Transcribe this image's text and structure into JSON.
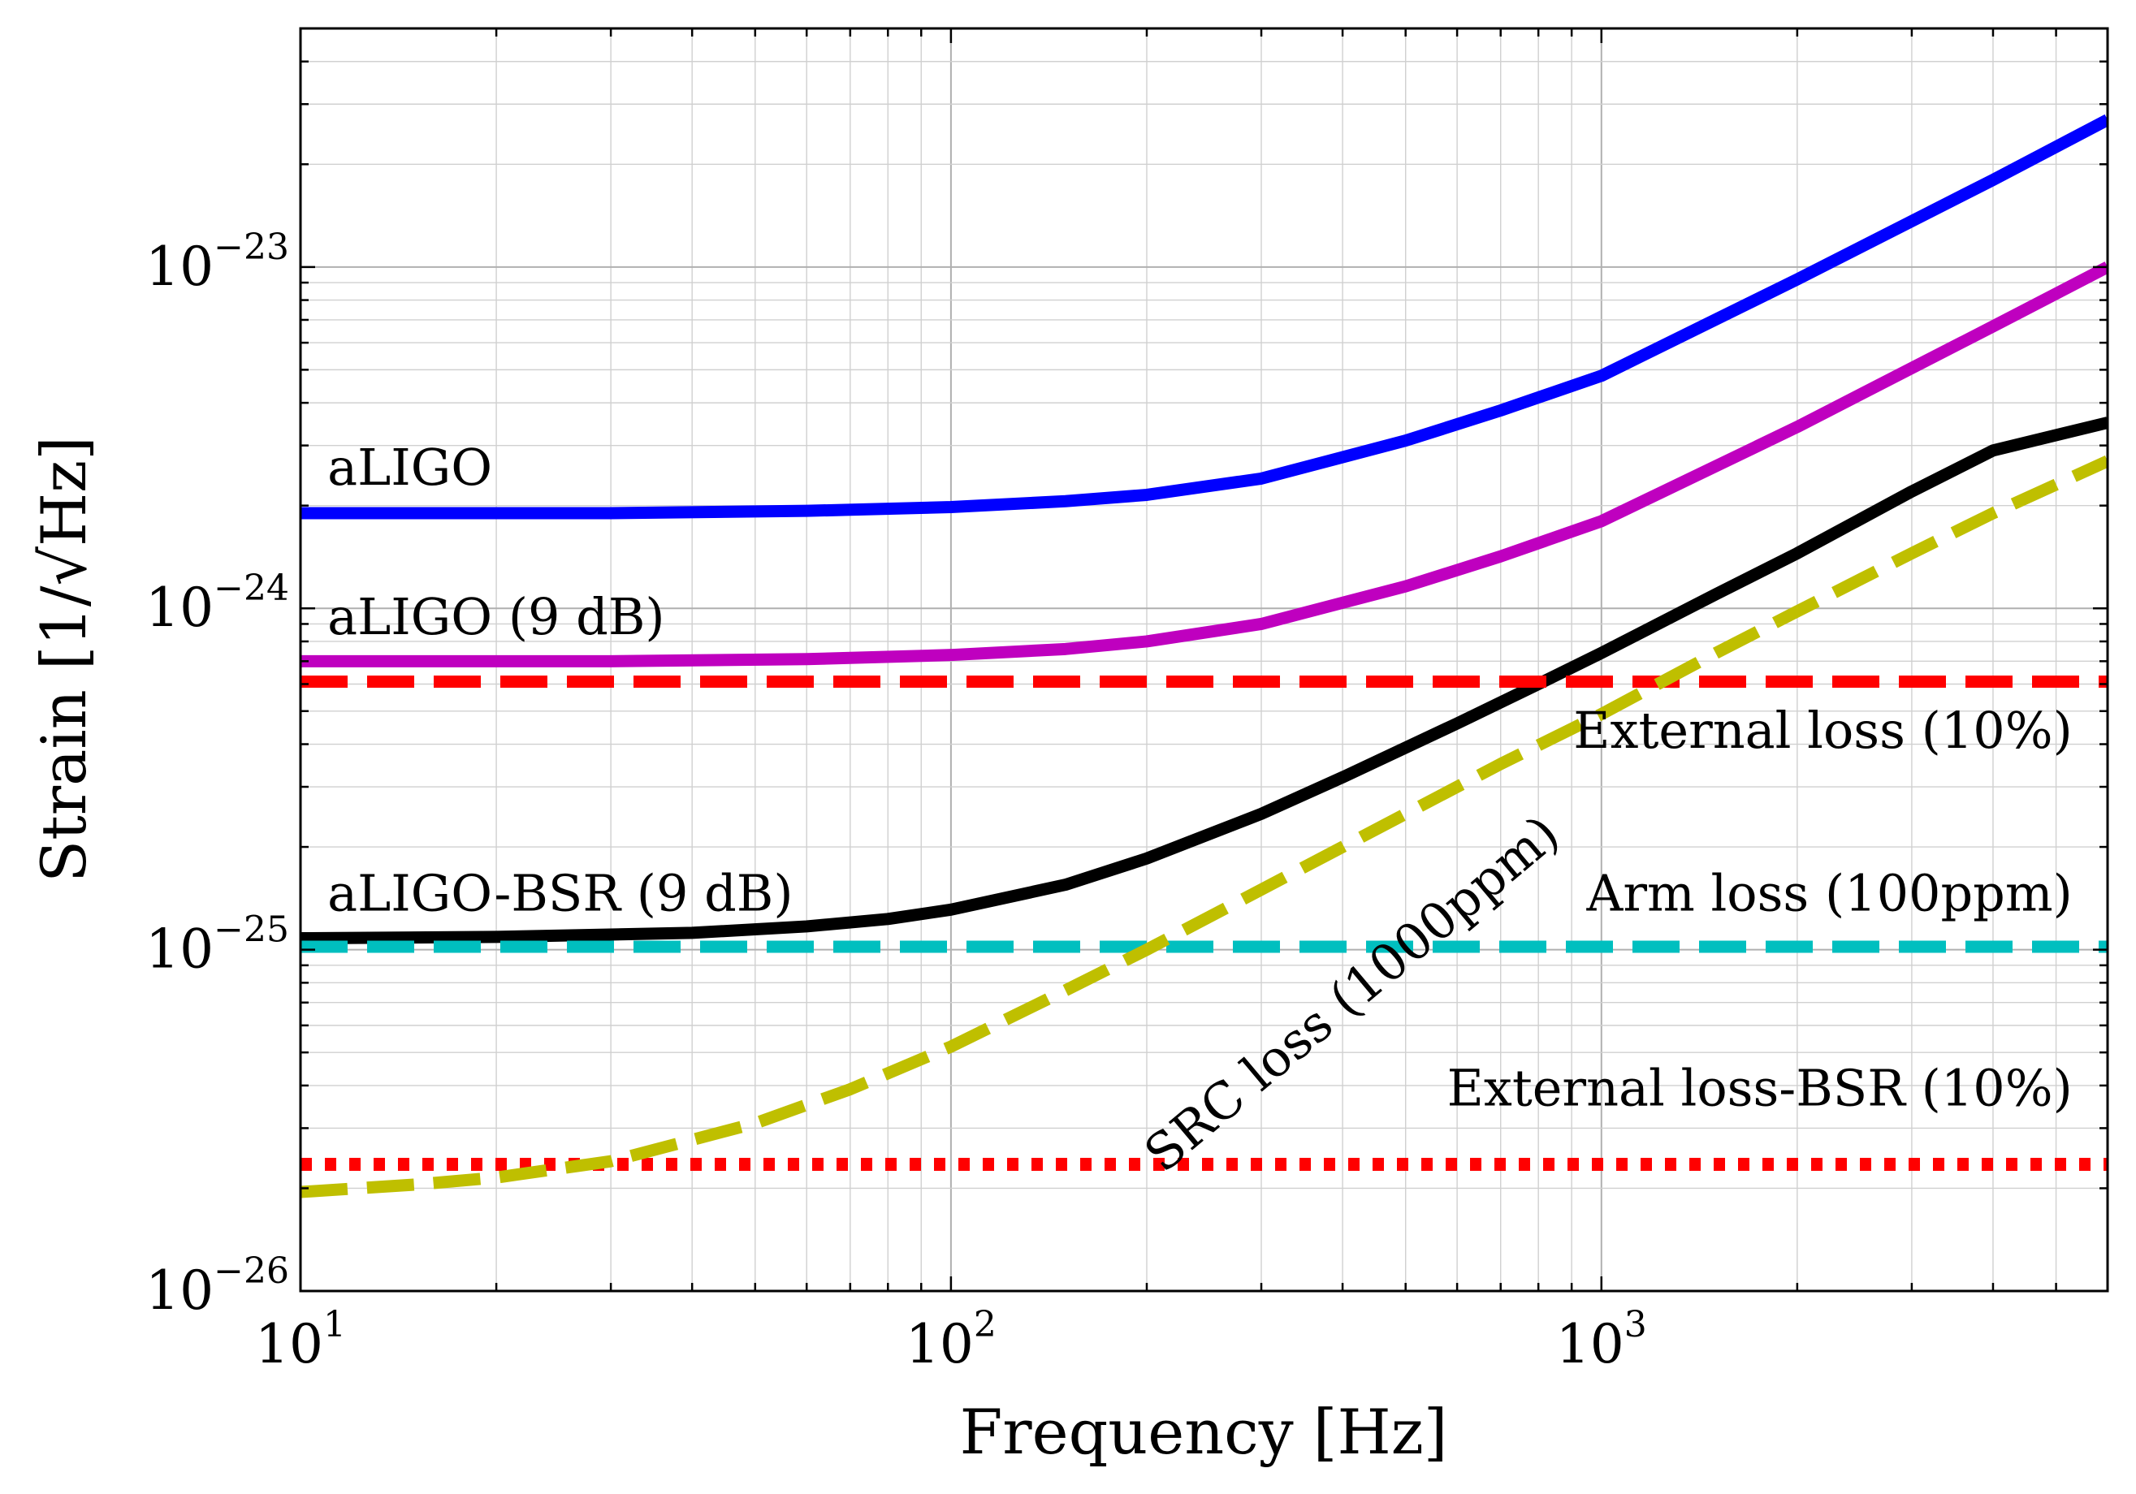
{
  "chart_data": {
    "type": "line",
    "xlabel": "Frequency [Hz]",
    "ylabel": "Strain [1/√Hz]",
    "x_scale": "log",
    "y_scale": "log",
    "xlim": [
      10,
      6000
    ],
    "ylim": [
      1e-26,
      5e-23
    ],
    "grid": true,
    "x_ticks": [
      {
        "value": 10,
        "base": "10",
        "exp": "1"
      },
      {
        "value": 100,
        "base": "10",
        "exp": "2"
      },
      {
        "value": 1000,
        "base": "10",
        "exp": "3"
      }
    ],
    "y_ticks": [
      {
        "value": 1e-26,
        "base": "10",
        "exp": "−26"
      },
      {
        "value": 1e-25,
        "base": "10",
        "exp": "−25"
      },
      {
        "value": 1e-24,
        "base": "10",
        "exp": "−24"
      },
      {
        "value": 1e-23,
        "base": "10",
        "exp": "−23"
      }
    ],
    "series": [
      {
        "name": "aLIGO",
        "color": "#0000ff",
        "style": "solid",
        "x": [
          10,
          30,
          60,
          100,
          150,
          200,
          300,
          500,
          700,
          1000,
          2000,
          4000,
          6000
        ],
        "y": [
          1.9e-24,
          1.9e-24,
          1.93e-24,
          1.98e-24,
          2.06e-24,
          2.15e-24,
          2.4e-24,
          3.1e-24,
          3.8e-24,
          4.8e-24,
          9.2e-24,
          1.8e-23,
          2.7e-23
        ]
      },
      {
        "name": "aLIGO (9 dB)",
        "color": "#bf00bf",
        "style": "solid",
        "x": [
          10,
          30,
          60,
          100,
          150,
          200,
          300,
          500,
          700,
          1000,
          2000,
          4000,
          6000
        ],
        "y": [
          7e-25,
          7e-25,
          7.1e-25,
          7.3e-25,
          7.6e-25,
          8e-25,
          9e-25,
          1.16e-24,
          1.42e-24,
          1.8e-24,
          3.4e-24,
          6.7e-24,
          1e-23
        ]
      },
      {
        "name": "aLIGO-BSR (9 dB)",
        "color": "#000000",
        "style": "solid",
        "x": [
          10,
          20,
          40,
          60,
          80,
          100,
          150,
          200,
          300,
          400,
          600,
          800,
          1000,
          1500,
          2000,
          3000,
          4000,
          6000
        ],
        "y": [
          1.08e-25,
          1.09e-25,
          1.12e-25,
          1.17e-25,
          1.23e-25,
          1.31e-25,
          1.55e-25,
          1.85e-25,
          2.5e-25,
          3.2e-25,
          4.6e-25,
          6e-25,
          7.4e-25,
          1.1e-24,
          1.45e-24,
          2.2e-24,
          2.9e-24,
          3.5e-24
        ]
      },
      {
        "name": "External loss (10%)",
        "color": "#ff0000",
        "style": "dashed",
        "x": [
          10,
          6000
        ],
        "y": [
          6.1e-25,
          6.1e-25
        ]
      },
      {
        "name": "Arm loss (100ppm)",
        "color": "#00bfbf",
        "style": "dashed",
        "x": [
          10,
          6000
        ],
        "y": [
          1.02e-25,
          1.02e-25
        ]
      },
      {
        "name": "External loss-BSR (10%)",
        "color": "#ff0000",
        "style": "dotted",
        "x": [
          10,
          6000
        ],
        "y": [
          2.35e-26,
          2.35e-26
        ]
      },
      {
        "name": "SRC loss (1000ppm)",
        "color": "#bfbf00",
        "style": "dashed",
        "x": [
          10,
          15,
          20,
          30,
          50,
          70,
          100,
          150,
          200,
          300,
          500,
          700,
          1000,
          1500,
          2000,
          3000,
          4000,
          6000
        ],
        "y": [
          1.95e-26,
          2.05e-26,
          2.15e-26,
          2.4e-26,
          3.1e-26,
          3.9e-26,
          5.2e-26,
          7.6e-26,
          1e-25,
          1.5e-25,
          2.5e-25,
          3.5e-25,
          4.9e-25,
          7.4e-25,
          9.8e-25,
          1.45e-24,
          1.9e-24,
          2.7e-24
        ]
      }
    ],
    "annotations": [
      {
        "text": "aLIGO",
        "x": 11,
        "y": 2.3e-24,
        "anchor": "start",
        "rotate": 0
      },
      {
        "text": "aLIGO (9 dB)",
        "x": 11,
        "y": 8.4e-25,
        "anchor": "start",
        "rotate": 0
      },
      {
        "text": "aLIGO-BSR (9 dB)",
        "x": 11,
        "y": 1.3e-25,
        "anchor": "start",
        "rotate": 0
      },
      {
        "text": "External loss (10%)",
        "x": 5300,
        "y": 3.9e-25,
        "anchor": "end",
        "rotate": 0
      },
      {
        "text": "Arm loss (100ppm)",
        "x": 5300,
        "y": 1.3e-25,
        "anchor": "end",
        "rotate": 0
      },
      {
        "text": "External loss-BSR (10%)",
        "x": 5300,
        "y": 3.5e-26,
        "anchor": "end",
        "rotate": 0
      },
      {
        "text": "SRC loss (1000ppm)",
        "x": 430,
        "y": 6.8e-26,
        "anchor": "middle",
        "rotate": -40
      }
    ]
  }
}
